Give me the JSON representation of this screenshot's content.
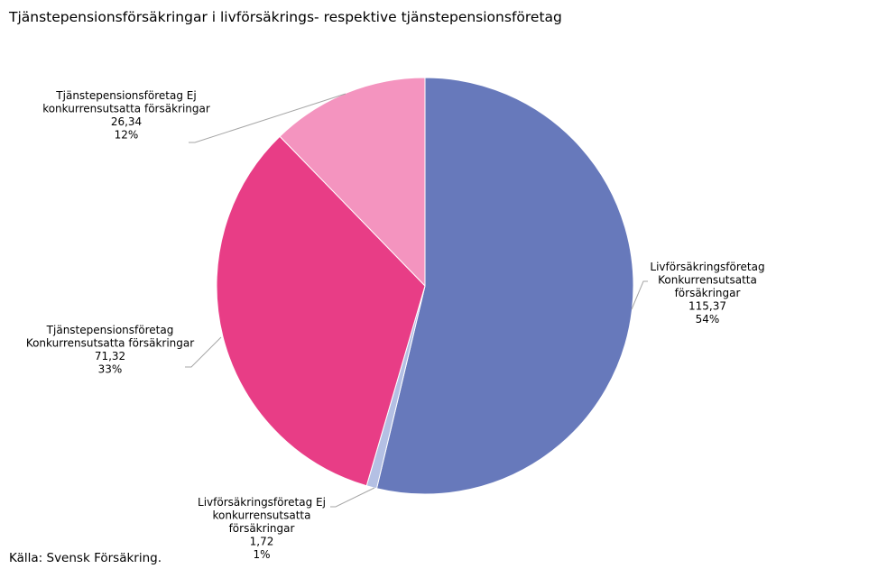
{
  "title": "Tjänstepensionsförsäkringar i livförsäkrings- respektive  tjänstepensionsföretag",
  "source": "Källa: Svensk Försäkring.",
  "chart_data": {
    "type": "pie",
    "title": "Tjänstepensionsförsäkringar i livförsäkrings- respektive  tjänstepensionsföretag",
    "slices": [
      {
        "label_lines": [
          "Livförsäkringsföretag",
          "Konkurrensutsatta",
          "försäkringar"
        ],
        "value": 115.37,
        "value_text": "115,37",
        "percent_text": "54%",
        "color": "#6779BB"
      },
      {
        "label_lines": [
          "Livförsäkringsföretag Ej",
          "konkurrensutsatta",
          "försäkringar"
        ],
        "value": 1.72,
        "value_text": "1,72",
        "percent_text": "1%",
        "color": "#B4C0E4"
      },
      {
        "label_lines": [
          "Tjänstepensionsföretag",
          "Konkurrensutsatta försäkringar"
        ],
        "value": 71.32,
        "value_text": "71,32",
        "percent_text": "33%",
        "color": "#E83D86"
      },
      {
        "label_lines": [
          "Tjänstepensionsföretag Ej",
          "konkurrensutsatta försäkringar"
        ],
        "value": 26.34,
        "value_text": "26,34",
        "percent_text": "12%",
        "color": "#F494BF"
      }
    ],
    "legend": "none",
    "source": "Källa: Svensk Försäkring."
  }
}
